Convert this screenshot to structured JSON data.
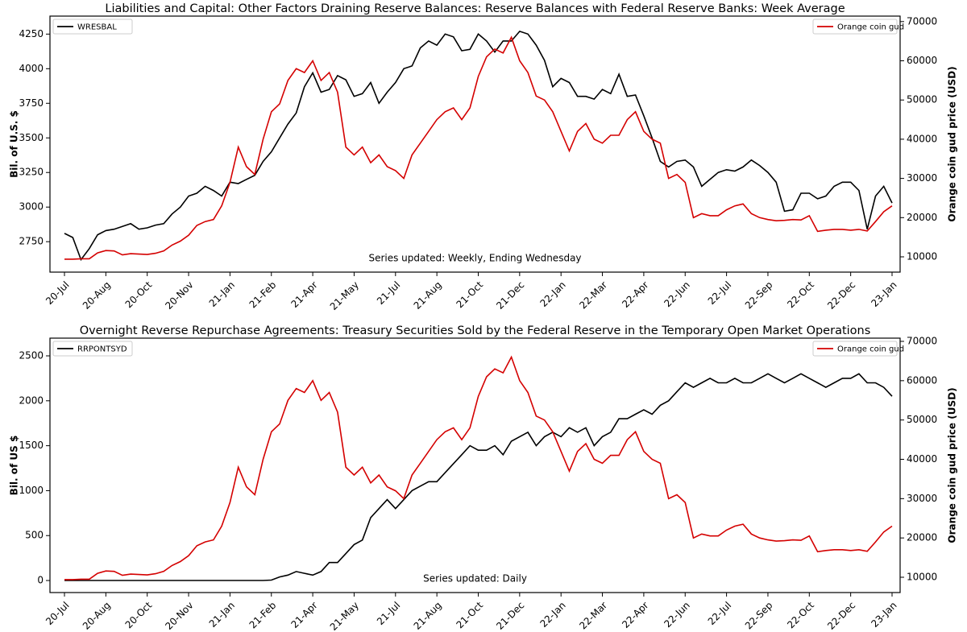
{
  "chart_data": [
    {
      "type": "line",
      "title": "Liabilities and Capital: Other Factors Draining Reserve Balances: Reserve Balances with Federal Reserve Banks: Week Average",
      "y_label": "Bil. of U.S. $",
      "y2_label": "Orange coin gud price (USD)",
      "annotation": "Series updated: Weekly, Ending Wednesday",
      "categories": [
        "20-Jul",
        null,
        null,
        null,
        null,
        "20-Aug",
        null,
        null,
        null,
        null,
        "20-Oct",
        null,
        null,
        null,
        null,
        "20-Nov",
        null,
        null,
        null,
        null,
        "21-Jan",
        null,
        null,
        null,
        null,
        "21-Feb",
        null,
        null,
        null,
        null,
        "21-Apr",
        null,
        null,
        null,
        null,
        "21-May",
        null,
        null,
        null,
        null,
        "21-Jul",
        null,
        null,
        null,
        null,
        "21-Aug",
        null,
        null,
        null,
        null,
        "21-Oct",
        null,
        null,
        null,
        null,
        "21-Dec",
        null,
        null,
        null,
        null,
        "22-Jan",
        null,
        null,
        null,
        null,
        "22-Mar",
        null,
        null,
        null,
        null,
        "22-Apr",
        null,
        null,
        null,
        null,
        "22-Jun",
        null,
        null,
        null,
        null,
        "22-Jul",
        null,
        null,
        null,
        null,
        "22-Sep",
        null,
        null,
        null,
        null,
        "22-Oct",
        null,
        null,
        null,
        null,
        "22-Dec",
        null,
        null,
        null,
        null,
        "23-Jan"
      ],
      "series": [
        {
          "name": "WRESBAL",
          "color": "#000000",
          "axis": "y",
          "values": [
            2810,
            2780,
            2620,
            2700,
            2800,
            2830,
            2840,
            2860,
            2880,
            2840,
            2850,
            2870,
            2880,
            2950,
            3000,
            3080,
            3100,
            3150,
            3120,
            3080,
            3180,
            3170,
            3200,
            3230,
            3330,
            3400,
            3500,
            3600,
            3680,
            3870,
            3970,
            3830,
            3850,
            3950,
            3920,
            3800,
            3820,
            3900,
            3750,
            3830,
            3900,
            4000,
            4020,
            4150,
            4200,
            4170,
            4250,
            4230,
            4130,
            4140,
            4250,
            4200,
            4120,
            4200,
            4200,
            4270,
            4250,
            4170,
            4060,
            3870,
            3930,
            3900,
            3800,
            3800,
            3780,
            3850,
            3820,
            3960,
            3800,
            3810,
            3660,
            3500,
            3330,
            3290,
            3330,
            3340,
            3290,
            3150,
            3200,
            3250,
            3270,
            3260,
            3290,
            3340,
            3300,
            3250,
            3180,
            2970,
            2980,
            3100,
            3100,
            3060,
            3080,
            3150,
            3180,
            3180,
            3120,
            2840,
            3080,
            3150,
            3030
          ]
        },
        {
          "name": "Orange coin gud",
          "color": "#d40000",
          "axis": "y2",
          "values": [
            9400,
            9400,
            9500,
            9500,
            11000,
            11600,
            11500,
            10500,
            10800,
            10700,
            10600,
            10900,
            11500,
            13000,
            14000,
            15500,
            18000,
            19000,
            19500,
            23000,
            29000,
            38000,
            33000,
            31000,
            40000,
            47000,
            49000,
            55000,
            58000,
            57000,
            60000,
            55000,
            57000,
            52000,
            38000,
            36000,
            38000,
            34000,
            36000,
            33000,
            32000,
            30000,
            36000,
            39000,
            42000,
            45000,
            47000,
            48000,
            45000,
            48000,
            56000,
            61000,
            63000,
            62000,
            66000,
            60000,
            57000,
            51000,
            50000,
            47000,
            42000,
            37000,
            42000,
            44000,
            40000,
            39000,
            41000,
            41000,
            45000,
            47000,
            42000,
            40000,
            39000,
            30000,
            31000,
            29000,
            20000,
            21000,
            20500,
            20500,
            22000,
            23000,
            23500,
            21000,
            20000,
            19500,
            19200,
            19300,
            19500,
            19400,
            20500,
            16500,
            16800,
            17000,
            17000,
            16800,
            17000,
            16600,
            19000,
            21500,
            23000
          ]
        }
      ],
      "ylim": [
        2530,
        4380
      ],
      "yticks": [
        2750,
        3000,
        3250,
        3500,
        3750,
        4000,
        4250
      ],
      "y2lim": [
        6100,
        71400
      ],
      "y2ticks": [
        10000,
        20000,
        30000,
        40000,
        50000,
        60000,
        70000
      ]
    },
    {
      "type": "line",
      "title": "Overnight Reverse Repurchase Agreements: Treasury Securities Sold by the Federal Reserve in the Temporary Open Market Operations",
      "y_label": "Bil. of US $",
      "y2_label": "Orange coin gud price (USD)",
      "annotation": "Series updated: Daily",
      "categories": [
        "20-Jul",
        null,
        null,
        null,
        null,
        "20-Aug",
        null,
        null,
        null,
        null,
        "20-Oct",
        null,
        null,
        null,
        null,
        "20-Nov",
        null,
        null,
        null,
        null,
        "21-Jan",
        null,
        null,
        null,
        null,
        "21-Feb",
        null,
        null,
        null,
        null,
        "21-Apr",
        null,
        null,
        null,
        null,
        "21-May",
        null,
        null,
        null,
        null,
        "21-Jul",
        null,
        null,
        null,
        null,
        "21-Aug",
        null,
        null,
        null,
        null,
        "21-Oct",
        null,
        null,
        null,
        null,
        "21-Dec",
        null,
        null,
        null,
        null,
        "22-Jan",
        null,
        null,
        null,
        null,
        "22-Mar",
        null,
        null,
        null,
        null,
        "22-Apr",
        null,
        null,
        null,
        null,
        "22-Jun",
        null,
        null,
        null,
        null,
        "22-Jul",
        null,
        null,
        null,
        null,
        "22-Sep",
        null,
        null,
        null,
        null,
        "22-Oct",
        null,
        null,
        null,
        null,
        "22-Dec",
        null,
        null,
        null,
        null,
        "23-Jan"
      ],
      "series": [
        {
          "name": "RRPONTSYD",
          "color": "#000000",
          "axis": "y",
          "values": [
            0,
            0,
            0,
            0,
            0,
            0,
            0,
            0,
            0,
            0,
            0,
            0,
            0,
            0,
            0,
            0,
            0,
            0,
            0,
            0,
            0,
            0,
            0,
            0,
            0,
            5,
            40,
            60,
            100,
            80,
            60,
            100,
            200,
            200,
            300,
            400,
            450,
            700,
            800,
            900,
            800,
            900,
            1000,
            1050,
            1100,
            1100,
            1200,
            1300,
            1400,
            1500,
            1450,
            1450,
            1500,
            1400,
            1550,
            1600,
            1650,
            1500,
            1600,
            1650,
            1600,
            1700,
            1650,
            1700,
            1500,
            1600,
            1650,
            1800,
            1800,
            1850,
            1900,
            1850,
            1950,
            2000,
            2100,
            2200,
            2150,
            2200,
            2250,
            2200,
            2200,
            2250,
            2200,
            2200,
            2250,
            2300,
            2250,
            2200,
            2250,
            2300,
            2250,
            2200,
            2150,
            2200,
            2250,
            2250,
            2300,
            2200,
            2200,
            2150,
            2050
          ]
        },
        {
          "name": "Orange coin gud",
          "color": "#d40000",
          "axis": "y2",
          "values": [
            9400,
            9400,
            9500,
            9500,
            11000,
            11600,
            11500,
            10500,
            10800,
            10700,
            10600,
            10900,
            11500,
            13000,
            14000,
            15500,
            18000,
            19000,
            19500,
            23000,
            29000,
            38000,
            33000,
            31000,
            40000,
            47000,
            49000,
            55000,
            58000,
            57000,
            60000,
            55000,
            57000,
            52000,
            38000,
            36000,
            38000,
            34000,
            36000,
            33000,
            32000,
            30000,
            36000,
            39000,
            42000,
            45000,
            47000,
            48000,
            45000,
            48000,
            56000,
            61000,
            63000,
            62000,
            66000,
            60000,
            57000,
            51000,
            50000,
            47000,
            42000,
            37000,
            42000,
            44000,
            40000,
            39000,
            41000,
            41000,
            45000,
            47000,
            42000,
            40000,
            39000,
            30000,
            31000,
            29000,
            20000,
            21000,
            20500,
            20500,
            22000,
            23000,
            23500,
            21000,
            20000,
            19500,
            19200,
            19300,
            19500,
            19400,
            20500,
            16500,
            16800,
            17000,
            17000,
            16800,
            17000,
            16600,
            19000,
            21500,
            23000
          ]
        }
      ],
      "ylim": [
        -134,
        2697
      ],
      "yticks": [
        0,
        500,
        1000,
        1500,
        2000,
        2500
      ],
      "y2lim": [
        6110,
        70820
      ],
      "y2ticks": [
        10000,
        20000,
        30000,
        40000,
        50000,
        60000,
        70000
      ]
    }
  ]
}
